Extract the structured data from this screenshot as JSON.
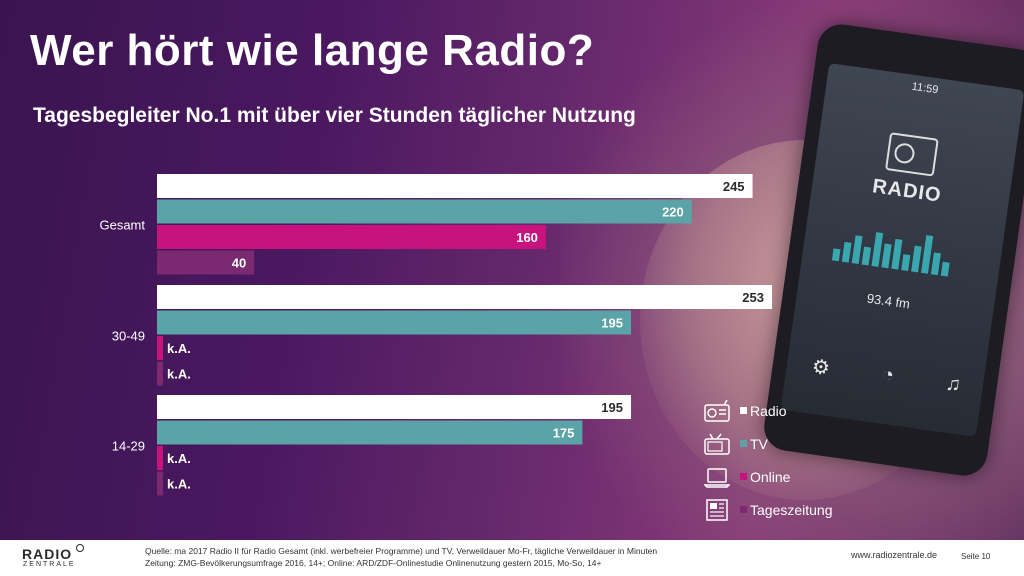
{
  "header": {
    "title": "Wer hört wie lange Radio?",
    "subtitle": "Tagesbegleiter No.1 mit über vier Stunden täglicher Nutzung"
  },
  "phone": {
    "time": "11:59",
    "app_label": "RADIO",
    "frequency": "93.4 fm"
  },
  "chart_data": {
    "type": "bar",
    "orientation": "horizontal",
    "categories": [
      "Gesamt",
      "30-49",
      "14-29"
    ],
    "series": [
      {
        "name": "Radio",
        "color": "#ffffff",
        "label_color": "#2b2b2b",
        "values": [
          245,
          253,
          195
        ],
        "labels": [
          "245",
          "253",
          "195"
        ]
      },
      {
        "name": "TV",
        "color": "#5aa3a6",
        "label_color": "#ffffff",
        "values": [
          220,
          195,
          175
        ],
        "labels": [
          "220",
          "195",
          "175"
        ]
      },
      {
        "name": "Online",
        "color": "#c8127e",
        "label_color": "#ffffff",
        "values": [
          160,
          null,
          null
        ],
        "labels": [
          "160",
          "k.A.",
          "k.A."
        ]
      },
      {
        "name": "Tageszeitung",
        "color": "#7b2a72",
        "label_color": "#ffffff",
        "values": [
          40,
          null,
          null
        ],
        "labels": [
          "40",
          "k.A.",
          "k.A."
        ]
      }
    ],
    "xlim": [
      0,
      253
    ],
    "grid": false,
    "legend": "bottom-right"
  },
  "legend": {
    "items": [
      {
        "label": "Radio",
        "icon": "radio-icon",
        "color": "#ffffff"
      },
      {
        "label": "TV",
        "icon": "tv-icon",
        "color": "#5aa3a6"
      },
      {
        "label": "Online",
        "icon": "laptop-icon",
        "color": "#c8127e"
      },
      {
        "label": "Tageszeitung",
        "icon": "newspaper-icon",
        "color": "#7b2a72"
      }
    ]
  },
  "footer": {
    "logo_top": "RADIO",
    "logo_bottom": "ZENTRALE",
    "source_line1": "Quelle: ma 2017 Radio II für Radio Gesamt (inkl. werbefreier Programme) und TV, Verweildauer Mo-Fr, tägliche Verweildauer in Minuten",
    "source_line2": "Zeitung: ZMG-Bevölkerungsumfrage 2016, 14+; Online: ARD/ZDF-Onlinestudie Onlinenutzung gestern 2015, Mo-So, 14+",
    "website": "www.radiozentrale.de",
    "page": "Seite 10"
  }
}
